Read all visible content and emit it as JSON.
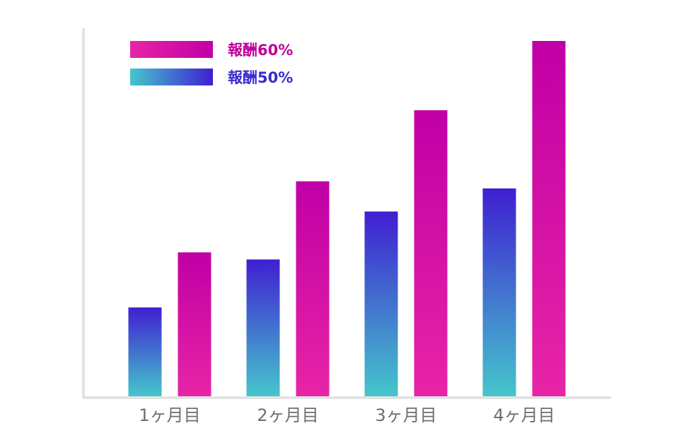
{
  "chart_data": {
    "type": "bar",
    "categories": [
      "1ヶ月目",
      "2ヶ月目",
      "3ヶ月目",
      "4ヶ月目"
    ],
    "series": [
      {
        "name": "報酬50%",
        "values": [
          25,
          38.5,
          52,
          58.5
        ],
        "gradient": [
          "#45c6cc",
          "#3f1fd1"
        ],
        "label_color": "#3a2bcf"
      },
      {
        "name": "報酬60%",
        "values": [
          40.5,
          60.5,
          80.5,
          100
        ],
        "gradient": [
          "#e824a6",
          "#c000a6"
        ],
        "label_color": "#c0009b"
      }
    ],
    "ylim": [
      0,
      100
    ],
    "grid": false,
    "legend": "top-left",
    "axis_color": "#e3e3e3"
  }
}
